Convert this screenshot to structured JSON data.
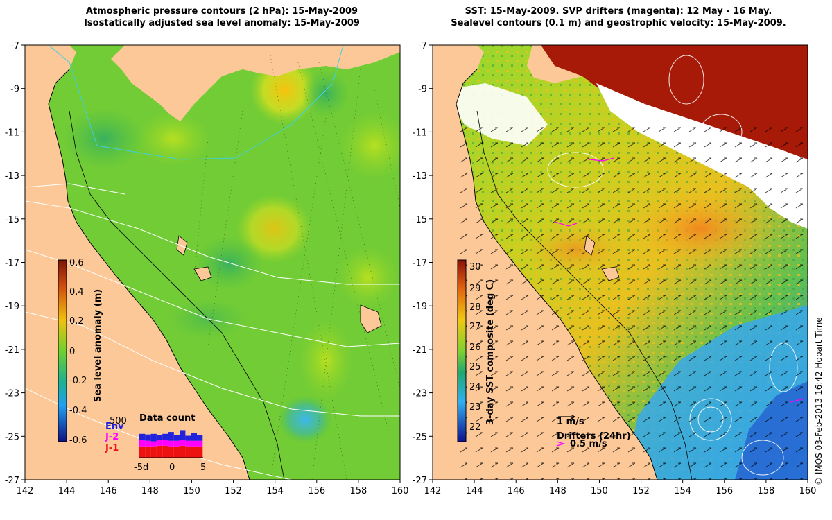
{
  "left_panel": {
    "title_line1": "Atmospheric pressure contours (2 hPa): 15-May-2009",
    "title_line2": "Isostatically adjusted sea level anomaly: 15-May-2009",
    "y_ticks": [
      "-7",
      "-9",
      "-11",
      "-13",
      "-15",
      "-17",
      "-19",
      "-21",
      "-23",
      "-25",
      "-27"
    ],
    "x_ticks": [
      "142",
      "144",
      "146",
      "148",
      "150",
      "152",
      "154",
      "156",
      "158",
      "160"
    ],
    "colorbar": {
      "label": "Sea level anomaly (m)",
      "ticks": [
        "0.6",
        "0.4",
        "0.2",
        "0",
        "-0.2",
        "-0.4",
        "-0.6"
      ]
    },
    "data_count": {
      "title": "Data count",
      "max_label": "500",
      "missions": [
        "Env",
        "J-2",
        "J-1"
      ],
      "mission_colors": [
        "#2222dd",
        "#ff00ff",
        "#ee1111"
      ],
      "x_ticks": [
        "-5d",
        "0",
        "5"
      ]
    }
  },
  "right_panel": {
    "title_line1": "SST: 15-May-2009. SVP drifters (magenta): 12 May - 16 May.",
    "title_line2": "Sealevel contours (0.1 m) and geostrophic velocity: 15-May-2009.",
    "y_ticks": [
      "-7",
      "-9",
      "-11",
      "-13",
      "-15",
      "-17",
      "-19",
      "-21",
      "-23",
      "-25",
      "-27"
    ],
    "x_ticks": [
      "142",
      "144",
      "146",
      "148",
      "150",
      "152",
      "154",
      "156",
      "158",
      "160"
    ],
    "colorbar": {
      "label": "3-day SST composite (deg C)",
      "ticks": [
        "30",
        "29",
        "28",
        "27",
        "26",
        "25",
        "24",
        "23",
        "22"
      ]
    },
    "velocity_scale_label": "1 m/s",
    "drifters_label": "Drifters (24hr)",
    "drifter_speed_label": "0.5 m/s"
  },
  "credit": "© IMOS 03-Feb-2013 16:42 Hobart Time",
  "colors": {
    "land": "#fcc898",
    "ocean_sla": "#66cc33",
    "sst_warm": "#f0c020",
    "sst_hot": "#a01808",
    "sst_cool": "#30a8e8"
  }
}
